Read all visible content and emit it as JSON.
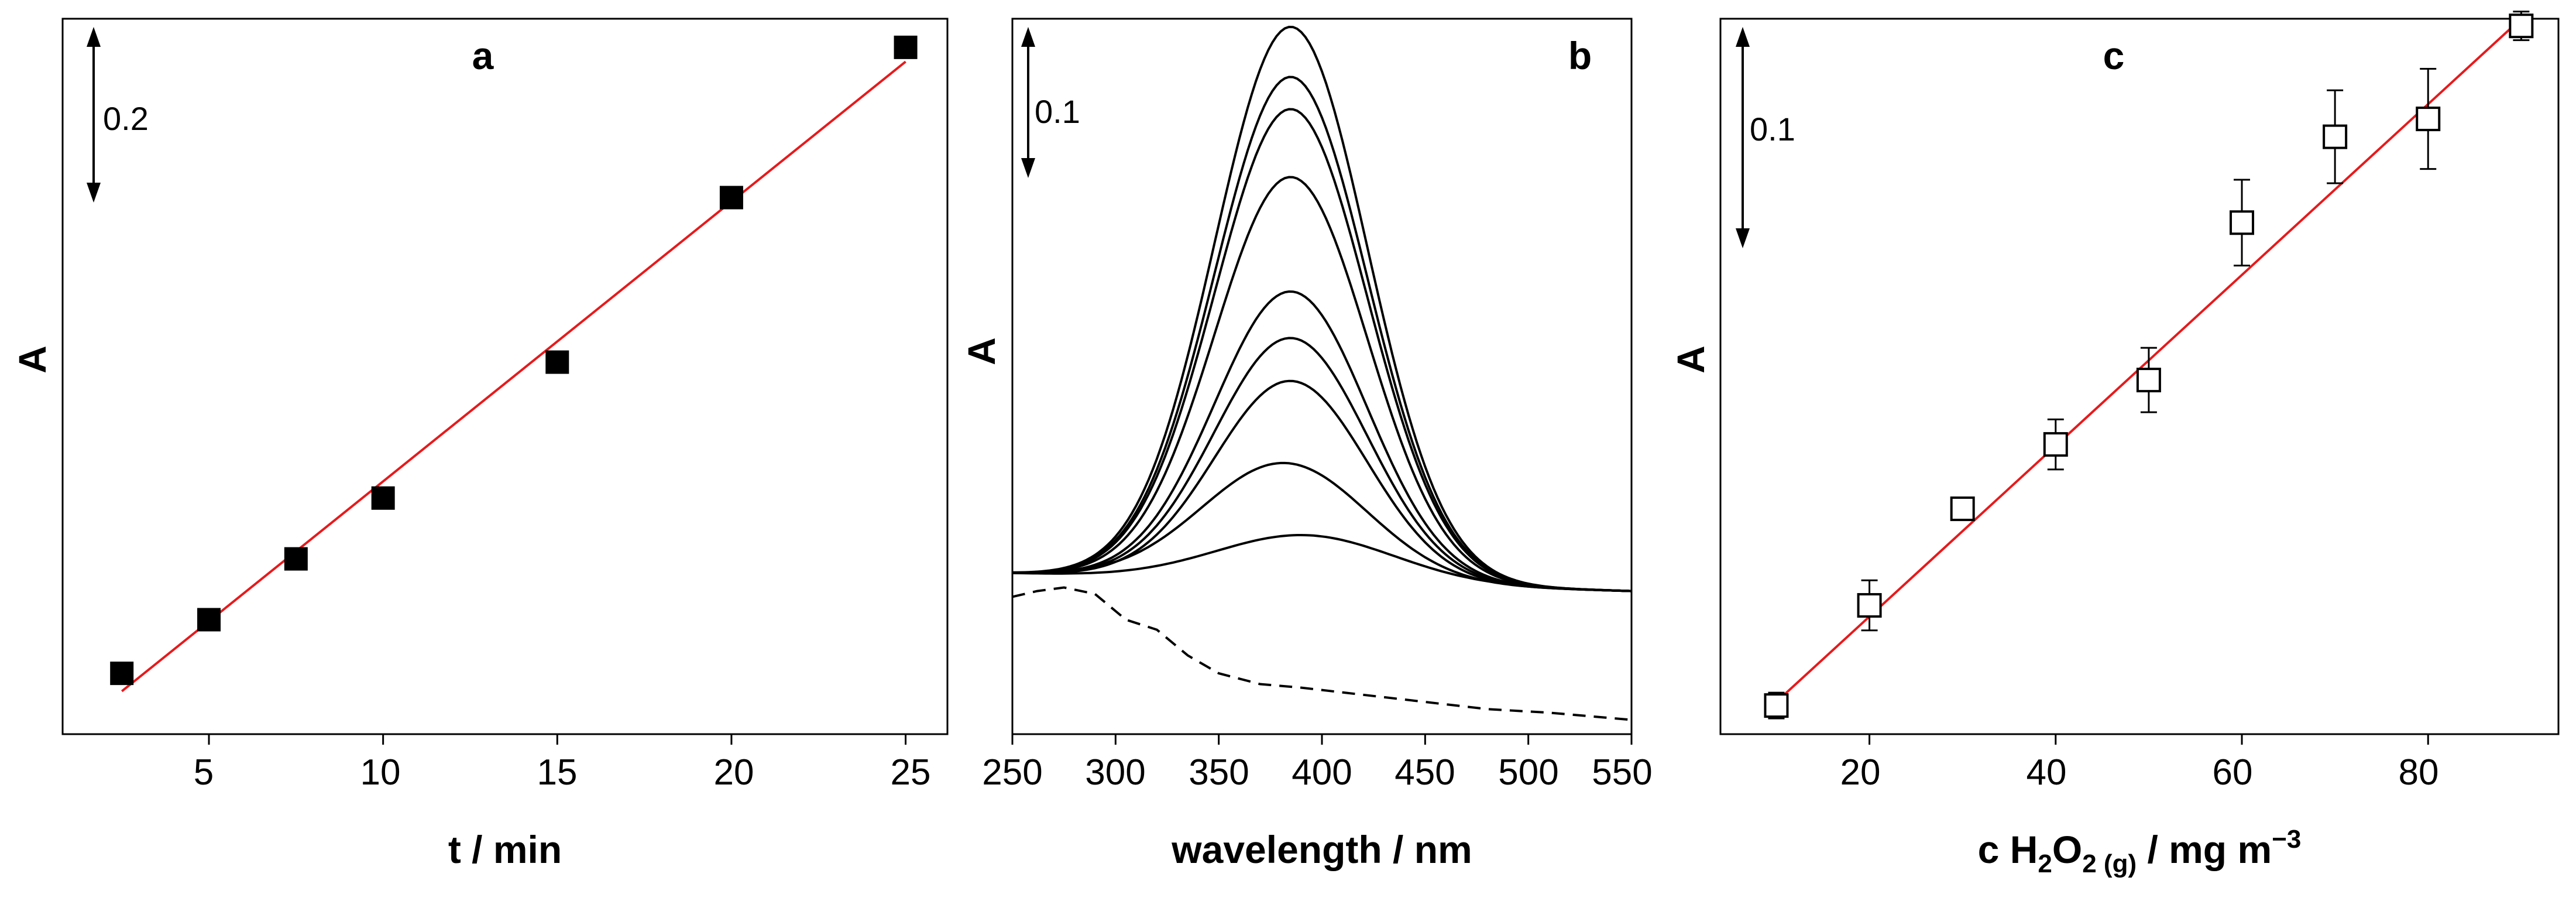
{
  "chart_data": [
    {
      "panel": "a",
      "type": "scatter",
      "panel_label": "a",
      "xlabel": "t / min",
      "ylabel": "A",
      "xlim": [
        0.8,
        26.2
      ],
      "ylim": [
        0,
        1.0
      ],
      "xticks": [
        5,
        10,
        15,
        20,
        25
      ],
      "xtick_labels": [
        "5",
        "10",
        "15",
        "20",
        "25"
      ],
      "scale_bar": {
        "label": "0.2",
        "value": 0.2
      },
      "series": [
        {
          "name": "measured",
          "marker": "filled-square",
          "x": [
            2.5,
            5,
            7.5,
            10,
            15,
            20,
            25
          ],
          "y": [
            0.085,
            0.16,
            0.245,
            0.33,
            0.52,
            0.75,
            0.96
          ]
        },
        {
          "name": "linear fit",
          "style": "line",
          "color": "#e8191b",
          "x": [
            2.5,
            25
          ],
          "y": [
            0.06,
            0.94
          ]
        }
      ]
    },
    {
      "panel": "b",
      "type": "line",
      "panel_label": "b",
      "xlabel": "wavelength / nm",
      "ylabel": "A",
      "xlim": [
        250,
        550
      ],
      "ylim": [
        0,
        1.0
      ],
      "xticks": [
        250,
        300,
        350,
        400,
        450,
        500,
        550
      ],
      "xtick_labels": [
        "250",
        "300",
        "350",
        "400",
        "450",
        "500",
        "550"
      ],
      "scale_bar": {
        "label": "0.1",
        "value": 0.1
      },
      "baseline": 0.225,
      "baseline_end": 0.2,
      "peaks": [
        {
          "center": 385,
          "height": 0.775,
          "sigma": 37
        },
        {
          "center": 385,
          "height": 0.705,
          "sigma": 37
        },
        {
          "center": 385,
          "height": 0.66,
          "sigma": 37
        },
        {
          "center": 385,
          "height": 0.565,
          "sigma": 37
        },
        {
          "center": 385,
          "height": 0.405,
          "sigma": 37
        },
        {
          "center": 385,
          "height": 0.34,
          "sigma": 37
        },
        {
          "center": 385,
          "height": 0.28,
          "sigma": 37
        },
        {
          "center": 382,
          "height": 0.165,
          "sigma": 40
        },
        {
          "center": 392,
          "height": 0.065,
          "sigma": 43
        }
      ],
      "dashed_reference": {
        "style": "dashed",
        "x": [
          250,
          262,
          275,
          290,
          305,
          320,
          335,
          350,
          370,
          390,
          420,
          450,
          480,
          510,
          530,
          550
        ],
        "y": [
          0.192,
          0.2,
          0.205,
          0.196,
          0.16,
          0.146,
          0.11,
          0.085,
          0.07,
          0.065,
          0.055,
          0.045,
          0.035,
          0.03,
          0.025,
          0.02
        ]
      }
    },
    {
      "panel": "c",
      "type": "scatter",
      "panel_label": "c",
      "xlabel_main": "c H",
      "xlabel_sub1": "2",
      "xlabel_mid": "O",
      "xlabel_sub2": "2 (g)",
      "xlabel_tail": " / mg m",
      "xlabel_sup": "−3",
      "ylabel": "A",
      "xlim": [
        4,
        94
      ],
      "ylim": [
        0,
        1.0
      ],
      "xticks": [
        20,
        40,
        60,
        80
      ],
      "xtick_labels": [
        "20",
        "40",
        "60",
        "80"
      ],
      "scale_bar": {
        "label": "0.1",
        "value": 0.1
      },
      "series": [
        {
          "name": "measured",
          "marker": "open-square",
          "x": [
            10,
            20,
            30,
            40,
            50,
            60,
            70,
            80,
            90
          ],
          "y": [
            0.04,
            0.18,
            0.315,
            0.405,
            0.495,
            0.715,
            0.835,
            0.86,
            0.99
          ],
          "yerr": [
            0.018,
            0.035,
            0.012,
            0.035,
            0.045,
            0.06,
            0.065,
            0.07,
            0.02
          ]
        },
        {
          "name": "linear fit",
          "style": "line",
          "color": "#e8191b",
          "x": [
            10,
            90
          ],
          "y": [
            0.045,
            1.0
          ]
        }
      ]
    }
  ]
}
